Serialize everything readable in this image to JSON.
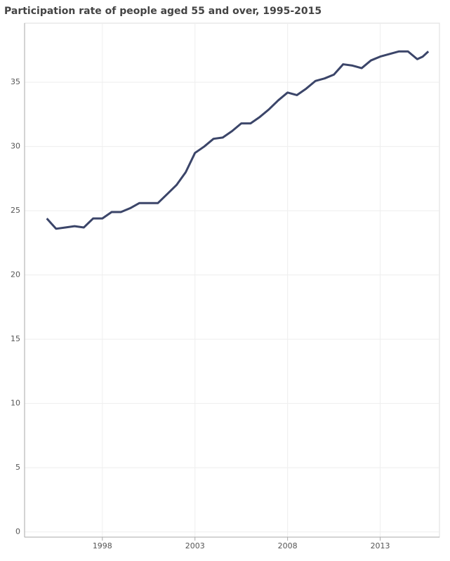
{
  "chart_data": {
    "type": "line",
    "title": "Participation rate of people aged 55 and over, 1995-2015",
    "x": [
      1995.0,
      1995.25,
      1995.5,
      1996.0,
      1996.5,
      1997.0,
      1997.5,
      1998.0,
      1998.5,
      1999.0,
      1999.5,
      2000.0,
      2000.5,
      2001.0,
      2001.5,
      2002.0,
      2002.5,
      2003.0,
      2003.5,
      2004.0,
      2004.5,
      2005.0,
      2005.5,
      2006.0,
      2006.5,
      2007.0,
      2007.5,
      2008.0,
      2008.5,
      2009.0,
      2009.5,
      2010.0,
      2010.5,
      2011.0,
      2011.5,
      2012.0,
      2012.5,
      2013.0,
      2013.5,
      2014.0,
      2014.5,
      2015.0,
      2015.3,
      2015.6
    ],
    "series": [
      {
        "color": "#3b4569",
        "values": [
          24.4,
          24.0,
          23.6,
          23.7,
          23.8,
          23.7,
          24.4,
          24.4,
          24.9,
          24.9,
          25.2,
          25.6,
          25.6,
          25.6,
          26.3,
          27.0,
          28.0,
          29.5,
          30.0,
          30.6,
          30.7,
          31.2,
          31.8,
          31.8,
          32.3,
          32.9,
          33.6,
          34.2,
          34.0,
          34.5,
          35.1,
          35.3,
          35.6,
          36.4,
          36.3,
          36.1,
          36.7,
          37.0,
          37.2,
          37.4,
          37.4,
          36.8,
          37.0,
          37.4
        ]
      }
    ],
    "xlim": [
      1993.8,
      2016.2
    ],
    "xticks": [
      1998,
      2003,
      2008,
      2013
    ],
    "ylim": [
      -0.4,
      39.6
    ],
    "yticks": [
      0,
      5,
      10,
      15,
      20,
      25,
      30,
      35
    ],
    "grid": true
  }
}
